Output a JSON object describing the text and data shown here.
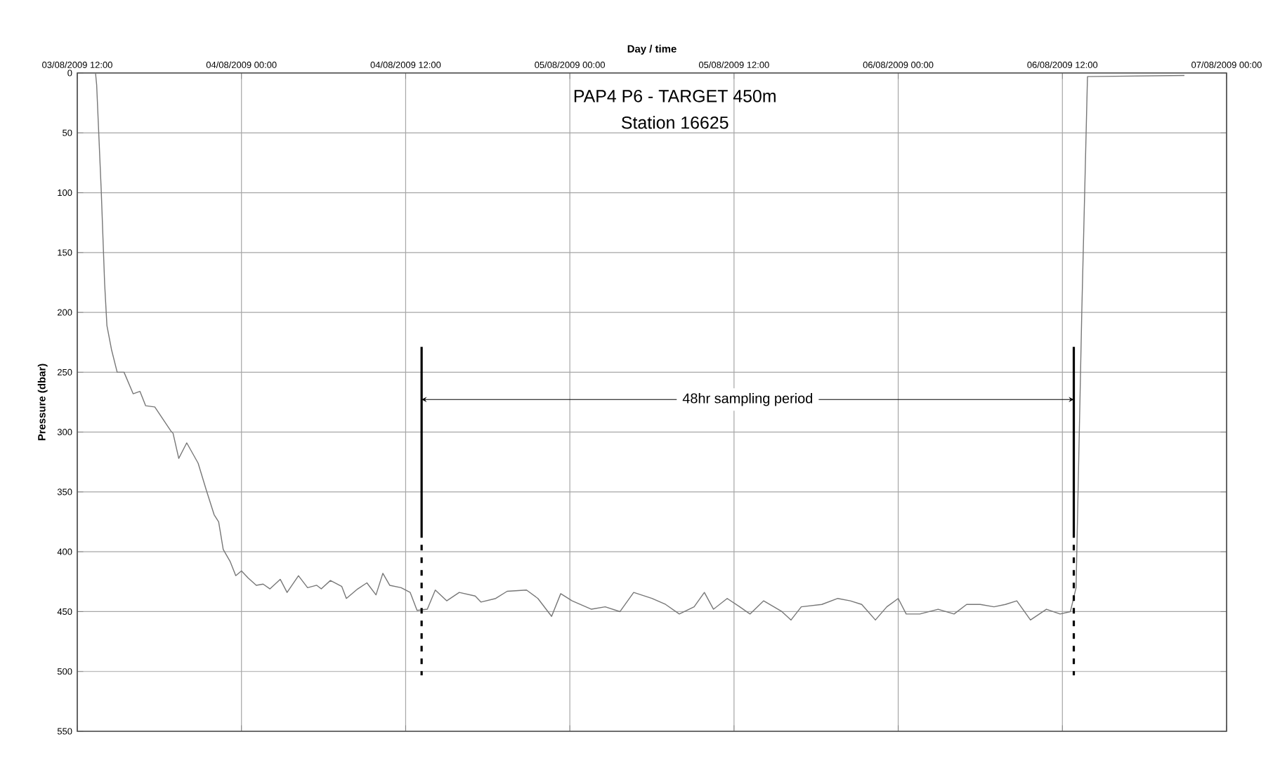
{
  "chart_data": {
    "type": "line",
    "title": "PAP4 P6 - TARGET 450m",
    "subtitle": "Station 16625",
    "xlabel": "Day / time",
    "ylabel": "Pressure (dbar)",
    "x": [
      "2009-08-03T13:20",
      "2009-08-03T13:25",
      "2009-08-03T13:45",
      "2009-08-03T14:00",
      "2009-08-03T14:10",
      "2009-08-03T14:30",
      "2009-08-03T14:55",
      "2009-08-03T15:25",
      "2009-08-03T16:05",
      "2009-08-03T16:35",
      "2009-08-03T17:00",
      "2009-08-03T17:40",
      "2009-08-03T18:50",
      "2009-08-03T19:00",
      "2009-08-03T19:25",
      "2009-08-03T20:00",
      "2009-08-03T20:50",
      "2009-08-03T21:25",
      "2009-08-03T22:00",
      "2009-08-03T22:20",
      "2009-08-03T22:40",
      "2009-08-03T23:10",
      "2009-08-03T23:35",
      "2009-08-04T00:00",
      "2009-08-04T00:30",
      "2009-08-04T01:05",
      "2009-08-04T01:35",
      "2009-08-04T02:05",
      "2009-08-04T02:50",
      "2009-08-04T03:20",
      "2009-08-04T04:10",
      "2009-08-04T04:50",
      "2009-08-04T05:30",
      "2009-08-04T05:50",
      "2009-08-04T06:30",
      "2009-08-04T07:20",
      "2009-08-04T07:40",
      "2009-08-04T08:30",
      "2009-08-04T09:10",
      "2009-08-04T09:50",
      "2009-08-04T10:20",
      "2009-08-04T10:50",
      "2009-08-04T11:40",
      "2009-08-04T12:20",
      "2009-08-04T12:50",
      "2009-08-04T13:35",
      "2009-08-04T14:10",
      "2009-08-04T15:00",
      "2009-08-04T15:55",
      "2009-08-04T17:05",
      "2009-08-04T17:30",
      "2009-08-04T18:35",
      "2009-08-04T19:25",
      "2009-08-04T20:50",
      "2009-08-04T21:40",
      "2009-08-04T22:40",
      "2009-08-04T23:20",
      "2009-08-05T00:10",
      "2009-08-05T01:35",
      "2009-08-05T02:35",
      "2009-08-05T03:40",
      "2009-08-05T04:40",
      "2009-08-05T06:00",
      "2009-08-05T07:00",
      "2009-08-05T08:00",
      "2009-08-05T09:05",
      "2009-08-05T09:50",
      "2009-08-05T10:30",
      "2009-08-05T11:30",
      "2009-08-05T12:25",
      "2009-08-05T13:10",
      "2009-08-05T14:10",
      "2009-08-05T15:30",
      "2009-08-05T16:10",
      "2009-08-05T16:55",
      "2009-08-05T18:25",
      "2009-08-05T19:35",
      "2009-08-05T20:30",
      "2009-08-05T21:20",
      "2009-08-05T22:20",
      "2009-08-05T23:10",
      "2009-08-06T00:00",
      "2009-08-06T00:35",
      "2009-08-06T01:35",
      "2009-08-06T02:55",
      "2009-08-06T04:05",
      "2009-08-06T05:00",
      "2009-08-06T06:00",
      "2009-08-06T07:00",
      "2009-08-06T07:50",
      "2009-08-06T08:40",
      "2009-08-06T09:40",
      "2009-08-06T10:50",
      "2009-08-06T11:50",
      "2009-08-06T12:35",
      "2009-08-06T13:00",
      "2009-08-06T13:25",
      "2009-08-06T13:50",
      "2009-08-06T20:55"
    ],
    "series": [
      {
        "color": "#777777",
        "values": [
          0,
          10,
          98,
          176,
          211,
          231,
          250,
          250,
          268,
          266,
          278,
          279,
          299,
          301,
          322,
          309,
          326,
          348,
          369,
          375,
          398,
          408,
          420,
          416,
          422,
          428,
          427,
          431,
          423,
          434,
          420,
          430,
          428,
          431,
          424,
          429,
          439,
          431,
          426,
          436,
          418,
          428,
          430,
          434,
          449,
          448,
          432,
          441,
          434,
          437,
          442,
          439,
          433,
          432,
          439,
          454,
          435,
          441,
          448,
          446,
          450,
          434,
          439,
          444,
          452,
          446,
          434,
          448,
          439,
          446,
          452,
          441,
          450,
          457,
          446,
          444,
          439,
          441,
          444,
          457,
          446,
          439,
          452,
          452,
          448,
          452,
          444,
          444,
          446,
          444,
          441,
          457,
          448,
          452,
          450,
          430,
          200,
          3,
          2
        ]
      }
    ],
    "xlim": [
      "2009-08-03T12:00",
      "2009-08-07T00:00"
    ],
    "xticks": [
      {
        "value": "2009-08-03T12:00",
        "label": "03/08/2009 12:00"
      },
      {
        "value": "2009-08-04T00:00",
        "label": "04/08/2009 00:00"
      },
      {
        "value": "2009-08-04T12:00",
        "label": "04/08/2009 12:00"
      },
      {
        "value": "2009-08-05T00:00",
        "label": "05/08/2009 00:00"
      },
      {
        "value": "2009-08-05T12:00",
        "label": "05/08/2009 12:00"
      },
      {
        "value": "2009-08-06T00:00",
        "label": "06/08/2009 00:00"
      },
      {
        "value": "2009-08-06T12:00",
        "label": "06/08/2009 12:00"
      },
      {
        "value": "2009-08-07T00:00",
        "label": "07/08/2009 00:00"
      }
    ],
    "ylim": [
      550,
      0
    ],
    "yticks": [
      0,
      50,
      100,
      150,
      200,
      250,
      300,
      350,
      400,
      450,
      500,
      550
    ],
    "grid": true,
    "line_style": "solid",
    "ref_lines": [
      {
        "axis": "x",
        "value": "2009-08-04T13:10",
        "color": "#000000",
        "line_style": "dashed"
      },
      {
        "axis": "x",
        "value": "2009-08-06T12:50",
        "color": "#000000",
        "line_style": "dashed"
      }
    ],
    "annotations": [
      "48hr sampling period"
    ]
  }
}
